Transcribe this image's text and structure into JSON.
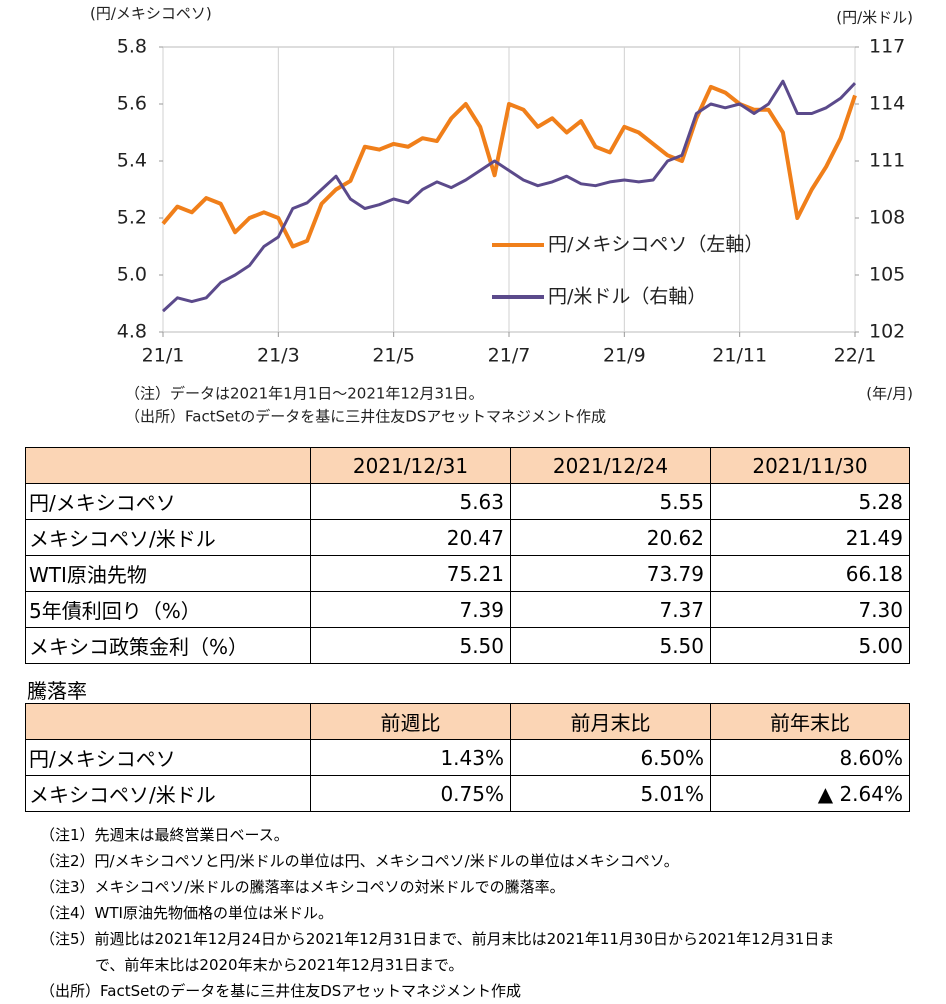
{
  "chart_data": {
    "type": "line",
    "ylabel": "(円/メキシコペソ)",
    "y2label": "(円/米ドル)",
    "xlabel": "(年/月)",
    "x": [
      0,
      0.25,
      0.5,
      0.75,
      1,
      1.25,
      1.5,
      1.75,
      2,
      2.25,
      2.5,
      2.75,
      3,
      3.25,
      3.5,
      3.75,
      4,
      4.25,
      4.5,
      4.75,
      5,
      5.25,
      5.5,
      5.75,
      6,
      6.25,
      6.5,
      6.75,
      7,
      7.25,
      7.5,
      7.75,
      8,
      8.25,
      8.5,
      8.75,
      9,
      9.25,
      9.5,
      9.75,
      10,
      10.25,
      10.5,
      10.75,
      11,
      11.25,
      11.5,
      11.75,
      12
    ],
    "xlim": [
      0,
      12
    ],
    "xticks": [
      {
        "value": 0,
        "label": "21/1"
      },
      {
        "value": 2,
        "label": "21/3"
      },
      {
        "value": 4,
        "label": "21/5"
      },
      {
        "value": 6,
        "label": "21/7"
      },
      {
        "value": 8,
        "label": "21/9"
      },
      {
        "value": 10,
        "label": "21/11"
      },
      {
        "value": 12,
        "label": "22/1"
      }
    ],
    "ylim": [
      4.8,
      5.8
    ],
    "yticks": [
      4.8,
      {
        "value": 5,
        "label": "5.0"
      },
      5.2,
      5.4,
      5.6,
      5.8
    ],
    "y2lim": [
      102,
      117
    ],
    "y2ticks": [
      102,
      105,
      108,
      111,
      114,
      117
    ],
    "grid": "x",
    "legend": "lower right",
    "series": [
      {
        "name": "円/メキシコペソ（左軸）",
        "color": "#f07f1a",
        "axis": "y",
        "values": [
          5.18,
          5.24,
          5.22,
          5.27,
          5.25,
          5.15,
          5.2,
          5.22,
          5.2,
          5.1,
          5.12,
          5.25,
          5.3,
          5.33,
          5.45,
          5.44,
          5.46,
          5.45,
          5.48,
          5.47,
          5.55,
          5.6,
          5.52,
          5.35,
          5.6,
          5.58,
          5.52,
          5.55,
          5.5,
          5.54,
          5.45,
          5.43,
          5.52,
          5.5,
          5.46,
          5.42,
          5.4,
          5.55,
          5.66,
          5.64,
          5.6,
          5.58,
          5.58,
          5.5,
          5.2,
          5.3,
          5.38,
          5.48,
          5.63
        ]
      },
      {
        "name": "円/米ドル（右軸）",
        "color": "#5b4a8b",
        "axis": "y2",
        "values": [
          103.1,
          103.8,
          103.6,
          103.8,
          104.6,
          105,
          105.5,
          106.5,
          107,
          108.5,
          108.8,
          109.5,
          110.2,
          109,
          108.5,
          108.7,
          109,
          108.8,
          109.5,
          109.9,
          109.6,
          110,
          110.5,
          111,
          110.5,
          110,
          109.7,
          109.9,
          110.2,
          109.8,
          109.7,
          109.9,
          110,
          109.9,
          110,
          111,
          111.3,
          113.5,
          114,
          113.8,
          114,
          113.5,
          114,
          115.2,
          113.5,
          113.5,
          113.8,
          114.3,
          115.1
        ]
      }
    ],
    "notes": [
      "（注）データは2021年1月1日～2021年12月31日。",
      "（出所）FactSetのデータを基に三井住友DSアセットマネジメント作成"
    ]
  },
  "table": {
    "headers": [
      "2021/12/31",
      "2021/12/24",
      "2021/11/30"
    ],
    "rows": [
      [
        "円/メキシコペソ",
        "5.63",
        "5.55",
        "5.28"
      ],
      [
        "メキシコペソ/米ドル",
        "20.47",
        "20.62",
        "21.49"
      ],
      [
        "WTI原油先物",
        "75.21",
        "73.79",
        "66.18"
      ],
      [
        "5年債利回り（%）",
        "7.39",
        "7.37",
        "7.30"
      ],
      [
        "メキシコ政策金利（%）",
        "5.50",
        "5.50",
        "5.00"
      ]
    ]
  },
  "table2": {
    "title": "騰落率",
    "headers": [
      "前週比",
      "前月末比",
      "前年末比"
    ],
    "rows": [
      [
        "円/メキシコペソ",
        "1.43%",
        "6.50%",
        "8.60%"
      ],
      [
        "メキシコペソ/米ドル",
        "0.75%",
        "5.01%",
        "▲ 2.64%"
      ]
    ]
  },
  "footnotes": [
    "（注1）先週末は最終営業日ベース。",
    "（注2）円/メキシコペソと円/米ドルの単位は円、メキシコペソ/米ドルの単位はメキシコペソ。",
    "（注3）メキシコペソ/米ドルの騰落率はメキシコペソの対米ドルでの騰落率。",
    "（注4）WTI原油先物価格の単位は米ドル。",
    "（注5）前週比は2021年12月24日から2021年12月31日まで、前月末比は2021年11月30日から2021年12月31日まで、前年末比は2020年末から2021年12月31日まで。",
    "（出所）FactSetのデータを基に三井住友DSアセットマネジメント作成"
  ]
}
